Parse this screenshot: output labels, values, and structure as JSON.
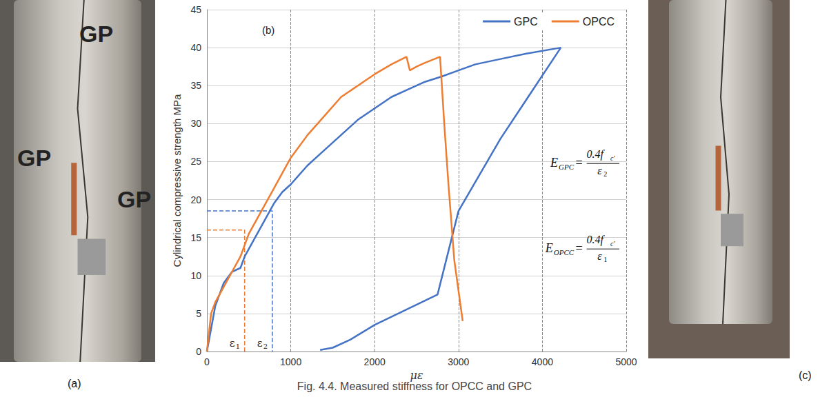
{
  "chart_data": {
    "type": "line",
    "panel_label": "(b)",
    "caption": "Fig. 4.4. Measured stiffness for OPCC and GPC",
    "x_label": "με",
    "y_label": "Cylindrical compressive strength MPa",
    "xlim": [
      0,
      5000
    ],
    "xticks": [
      0,
      1000,
      2000,
      3000,
      4000,
      5000
    ],
    "ylim": [
      0,
      45
    ],
    "yticks": [
      0,
      5,
      10,
      15,
      20,
      25,
      30,
      35,
      40,
      45
    ],
    "grid": true,
    "legend": "top-right",
    "series": [
      {
        "name": "GPC",
        "color": "#4472c4",
        "x": [
          0,
          50,
          100,
          200,
          300,
          400,
          450,
          500,
          600,
          700,
          800,
          900,
          1000,
          1200,
          1400,
          1600,
          1800,
          2000,
          2200,
          2400,
          2600,
          2800,
          3000,
          3200,
          3500,
          3800,
          4220,
          3500,
          3000,
          2750,
          2000,
          1700,
          1500,
          1350
        ],
        "values": [
          0,
          3,
          6,
          9,
          10.5,
          11,
          12.5,
          13.5,
          15.5,
          17.5,
          19.5,
          21,
          22,
          24.5,
          26.5,
          28.5,
          30.5,
          32,
          33.5,
          34.5,
          35.5,
          36.2,
          37,
          37.8,
          38.5,
          39.2,
          40,
          28,
          18.5,
          7.5,
          3.5,
          1.5,
          0.5,
          0.2
        ]
      },
      {
        "name": "OPCC",
        "color": "#ed7d31",
        "x": [
          0,
          20,
          50,
          100,
          200,
          300,
          400,
          450,
          500,
          600,
          700,
          800,
          1000,
          1200,
          1400,
          1600,
          1800,
          2000,
          2200,
          2380,
          2420,
          2500,
          2600,
          2780,
          2830,
          2880,
          2950,
          3050
        ],
        "values": [
          0,
          2,
          5,
          6.5,
          8.5,
          10.5,
          12.5,
          14,
          15.5,
          17.5,
          19.5,
          21.5,
          25.5,
          28.5,
          31,
          33.5,
          35,
          36.5,
          37.8,
          38.8,
          37,
          37.5,
          38,
          38.8,
          30,
          22,
          12,
          4
        ]
      }
    ],
    "guides": [
      {
        "series": "OPCC",
        "x": 450,
        "y": 16,
        "symbol": "ε",
        "subscript": "1"
      },
      {
        "series": "GPC",
        "x": 780,
        "y": 18.5,
        "symbol": "ε",
        "subscript": "2"
      }
    ],
    "annotations": [
      {
        "lhs": "E",
        "lhs_sub": "GPC",
        "operator": "=",
        "num": "0.4f",
        "num_sub": "c′",
        "den": "ε",
        "den_sub": "2"
      },
      {
        "lhs": "E",
        "lhs_sub": "OPCC",
        "operator": "=",
        "num": "0.4f",
        "num_sub": "c′",
        "den": "ε",
        "den_sub": "1"
      }
    ],
    "photos": [
      {
        "label": "(a)",
        "marks": [
          "GP",
          "GP",
          "GP"
        ]
      },
      {
        "label": "(c)",
        "marks": []
      }
    ]
  }
}
